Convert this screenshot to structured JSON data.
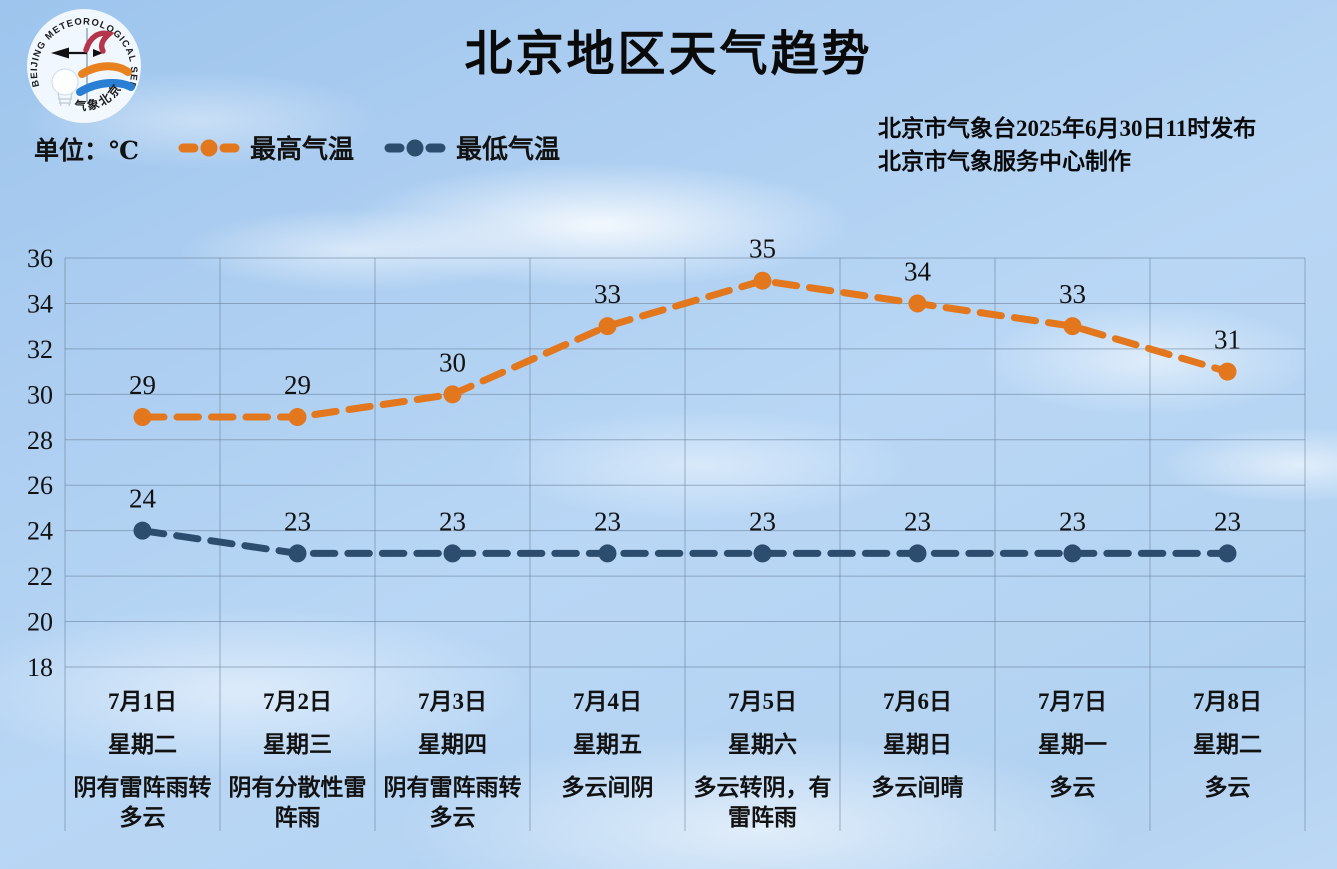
{
  "header": {
    "title": "北京地区天气趋势",
    "publisher_line1": "北京市气象台2025年6月30日11时发布",
    "publisher_line2": "北京市气象服务中心制作",
    "logo": {
      "arc_text": "BEIJING METEOROLOGICAL SERVICE",
      "bottom_text": "气象北京",
      "colors": {
        "red": "#b5364a",
        "orange": "#e8821e",
        "blue": "#2a7fd4"
      }
    }
  },
  "legend": {
    "unit_label": "单位：℃",
    "series": [
      {
        "label": "最高气温",
        "color": "#e2771d"
      },
      {
        "label": "最低气温",
        "color": "#2d4d6e"
      }
    ]
  },
  "chart_data": {
    "type": "line",
    "title": "北京地区天气趋势",
    "ylabel": "℃",
    "ylim": [
      18,
      36
    ],
    "ytick_step": 2,
    "grid": true,
    "legend_position": "top-left",
    "line_style": "dashed-with-dots",
    "categories": [
      {
        "date": "7月1日",
        "weekday": "星期二",
        "weather": "阴有雷阵雨转多云"
      },
      {
        "date": "7月2日",
        "weekday": "星期三",
        "weather": "阴有分散性雷阵雨"
      },
      {
        "date": "7月3日",
        "weekday": "星期四",
        "weather": "阴有雷阵雨转多云"
      },
      {
        "date": "7月4日",
        "weekday": "星期五",
        "weather": "多云间阴"
      },
      {
        "date": "7月5日",
        "weekday": "星期六",
        "weather": "多云转阴，有雷阵雨"
      },
      {
        "date": "7月6日",
        "weekday": "星期日",
        "weather": "多云间晴"
      },
      {
        "date": "7月7日",
        "weekday": "星期一",
        "weather": "多云"
      },
      {
        "date": "7月8日",
        "weekday": "星期二",
        "weather": "多云"
      }
    ],
    "series": [
      {
        "name": "最高气温",
        "color": "#e2771d",
        "values": [
          29,
          29,
          30,
          33,
          35,
          34,
          33,
          31
        ]
      },
      {
        "name": "最低气温",
        "color": "#2d4d6e",
        "values": [
          24,
          23,
          23,
          23,
          23,
          23,
          23,
          23
        ]
      }
    ]
  }
}
